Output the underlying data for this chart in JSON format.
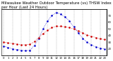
{
  "title": "Milwaukee Weather Outdoor Temperature (vs) THSW Index per Hour (Last 24 Hours)",
  "hours": [
    0,
    1,
    2,
    3,
    4,
    5,
    6,
    7,
    8,
    9,
    10,
    11,
    12,
    13,
    14,
    15,
    16,
    17,
    18,
    19,
    20,
    21,
    22,
    23
  ],
  "temp": [
    30,
    29,
    28,
    27,
    26,
    26,
    27,
    31,
    37,
    43,
    48,
    52,
    54,
    54,
    53,
    52,
    50,
    47,
    44,
    41,
    39,
    37,
    35,
    34
  ],
  "thsw": [
    24,
    22,
    20,
    19,
    18,
    17,
    18,
    25,
    36,
    50,
    62,
    70,
    75,
    72,
    68,
    62,
    53,
    44,
    36,
    30,
    26,
    23,
    21,
    20
  ],
  "temp_color": "#cc0000",
  "thsw_color": "#0000cc",
  "bg_color": "#ffffff",
  "grid_color": "#888888",
  "ylim_left": [
    10,
    80
  ],
  "ylim_right": [
    10,
    80
  ],
  "yticks_right": [
    20,
    30,
    40,
    50,
    60,
    70
  ],
  "title_fontsize": 3.8,
  "tick_fontsize": 2.8,
  "xlabel_fontsize": 2.5
}
